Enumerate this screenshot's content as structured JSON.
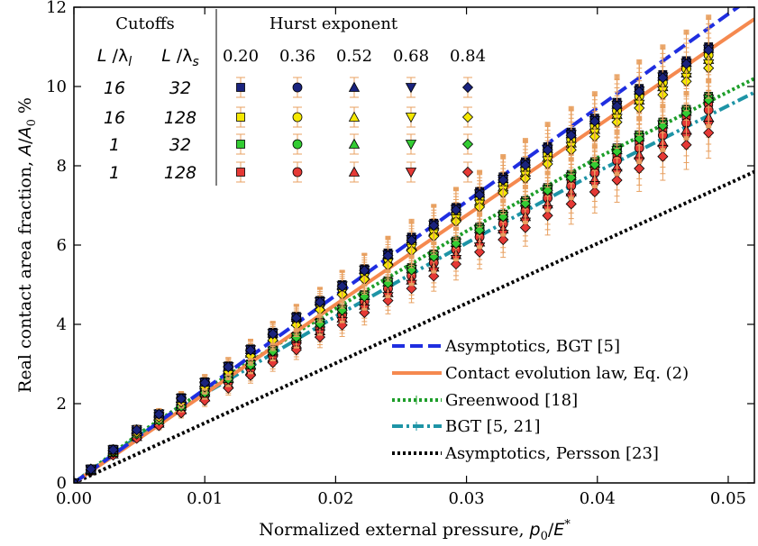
{
  "chart_data": {
    "type": "line",
    "title": "",
    "xlabel": "Normalized external pressure, p0/E*",
    "xlabel_parts": {
      "prefix": "Normalized external pressure, ",
      "p": "p",
      "p_sub": "0",
      "slash": "/",
      "E": "E",
      "E_sup": "*"
    },
    "ylabel": "Real contact area fraction, A/A0 %",
    "ylabel_parts": {
      "prefix": "Real contact area fraction, ",
      "A": "A",
      "slash": "/",
      "A0": "A",
      "A0_sub": "0",
      "suffix": " %"
    },
    "xlim": [
      0,
      0.052
    ],
    "ylim": [
      0,
      12
    ],
    "x_ticks": [
      0,
      0.01,
      0.02,
      0.03,
      0.04,
      0.05
    ],
    "x_tick_labels": [
      "0.00",
      "0.01",
      "0.02",
      "0.03",
      "0.04",
      "0.05"
    ],
    "y_ticks": [
      0,
      2,
      4,
      6,
      8,
      10,
      12
    ],
    "y_tick_labels": [
      "0",
      "2",
      "4",
      "6",
      "8",
      "10",
      "12"
    ],
    "grid": false,
    "legend_position": "bottom-right",
    "series": [
      {
        "name": "Asymptotics, BGT [5]",
        "color": "#1f2ee0",
        "style": "dashed",
        "x": [
          0,
          0.052
        ],
        "y": [
          0,
          12.3
        ]
      },
      {
        "name": "Contact evolution law, Eq. (2)",
        "color": "#f5894f",
        "style": "solid",
        "x": [
          0,
          0.052
        ],
        "y": [
          0,
          11.7
        ]
      },
      {
        "name": "Greenwood [18]",
        "color": "#1e9e2a",
        "style": "dotted",
        "x": [
          0,
          0.005,
          0.01,
          0.02,
          0.03,
          0.04,
          0.052
        ],
        "y": [
          0,
          1.25,
          2.35,
          4.4,
          6.35,
          8.2,
          10.2
        ]
      },
      {
        "name": "BGT [5, 21]",
        "color": "#1e94a6",
        "style": "dashdot",
        "x": [
          0,
          0.005,
          0.01,
          0.02,
          0.03,
          0.04,
          0.052
        ],
        "y": [
          0,
          1.2,
          2.25,
          4.2,
          6.05,
          7.85,
          9.85
        ]
      },
      {
        "name": "Asymptotics, Persson [23]",
        "color": "#000000",
        "style": "dotted",
        "x": [
          0,
          0.052
        ],
        "y": [
          0,
          7.85
        ]
      }
    ],
    "markers": {
      "x": [
        0,
        0.0013,
        0.003,
        0.0048,
        0.0065,
        0.0082,
        0.01,
        0.0118,
        0.0135,
        0.0152,
        0.017,
        0.0188,
        0.0205,
        0.0222,
        0.024,
        0.0258,
        0.0275,
        0.0292,
        0.031,
        0.0328,
        0.0345,
        0.0362,
        0.038,
        0.0398,
        0.0415,
        0.0432,
        0.045,
        0.0468,
        0.0485
      ],
      "groups": [
        {
          "name": "dark-blue",
          "color": "#1a237e",
          "y_upper": [
            0,
            0.35,
            0.85,
            1.35,
            1.75,
            2.15,
            2.55,
            2.95,
            3.38,
            3.8,
            4.2,
            4.6,
            5.0,
            5.4,
            5.8,
            6.2,
            6.55,
            6.95,
            7.35,
            7.72,
            8.1,
            8.48,
            8.85,
            9.2,
            9.6,
            9.95,
            10.3,
            10.65,
            11.0
          ]
        },
        {
          "name": "yellow",
          "color": "#f5e800",
          "y_upper": [
            0,
            0.35,
            0.83,
            1.33,
            1.73,
            2.12,
            2.52,
            2.92,
            3.34,
            3.75,
            4.15,
            4.55,
            4.95,
            5.35,
            5.72,
            6.1,
            6.48,
            6.87,
            7.25,
            7.62,
            8.0,
            8.38,
            8.75,
            9.1,
            9.48,
            9.85,
            10.2,
            10.55,
            10.9
          ]
        },
        {
          "name": "green",
          "color": "#33cc33",
          "y_lower": [
            0,
            0.33,
            0.78,
            1.25,
            1.6,
            1.95,
            2.3,
            2.65,
            3.0,
            3.35,
            3.7,
            4.05,
            4.4,
            4.75,
            5.1,
            5.43,
            5.77,
            6.1,
            6.45,
            6.78,
            7.12,
            7.45,
            7.78,
            8.1,
            8.45,
            8.78,
            9.1,
            9.42,
            9.75
          ]
        },
        {
          "name": "red",
          "color": "#e53935",
          "y_lower": [
            0,
            0.32,
            0.76,
            1.22,
            1.57,
            1.92,
            2.26,
            2.6,
            2.95,
            3.3,
            3.65,
            4.0,
            4.33,
            4.67,
            5.0,
            5.33,
            5.67,
            6.0,
            6.33,
            6.67,
            7.0,
            7.33,
            7.65,
            7.98,
            8.3,
            8.62,
            8.95,
            9.27,
            9.6
          ]
        }
      ]
    },
    "inset_table": {
      "cutoffs_header": "Cutoffs",
      "hurst_header": "Hurst exponent",
      "col_l": "L /λl",
      "col_l_parts": {
        "L": "L",
        "slash": " /",
        "lambda": "λ",
        "sub": "l"
      },
      "col_s_parts": {
        "L": "L",
        "slash": " /",
        "lambda": "λ",
        "sub": "s"
      },
      "hurst_values": [
        "0.20",
        "0.36",
        "0.52",
        "0.68",
        "0.84"
      ],
      "rows": [
        {
          "l": "16",
          "s": "32",
          "color": "#1a237e"
        },
        {
          "l": "16",
          "s": "128",
          "color": "#f5e800"
        },
        {
          "l": "1",
          "s": "32",
          "color": "#33cc33"
        },
        {
          "l": "1",
          "s": "128",
          "color": "#e53935"
        }
      ],
      "error_bar_color": "#e8a060",
      "marker_shapes": [
        "square",
        "circle",
        "triangle-up",
        "triangle-down",
        "diamond"
      ]
    }
  }
}
